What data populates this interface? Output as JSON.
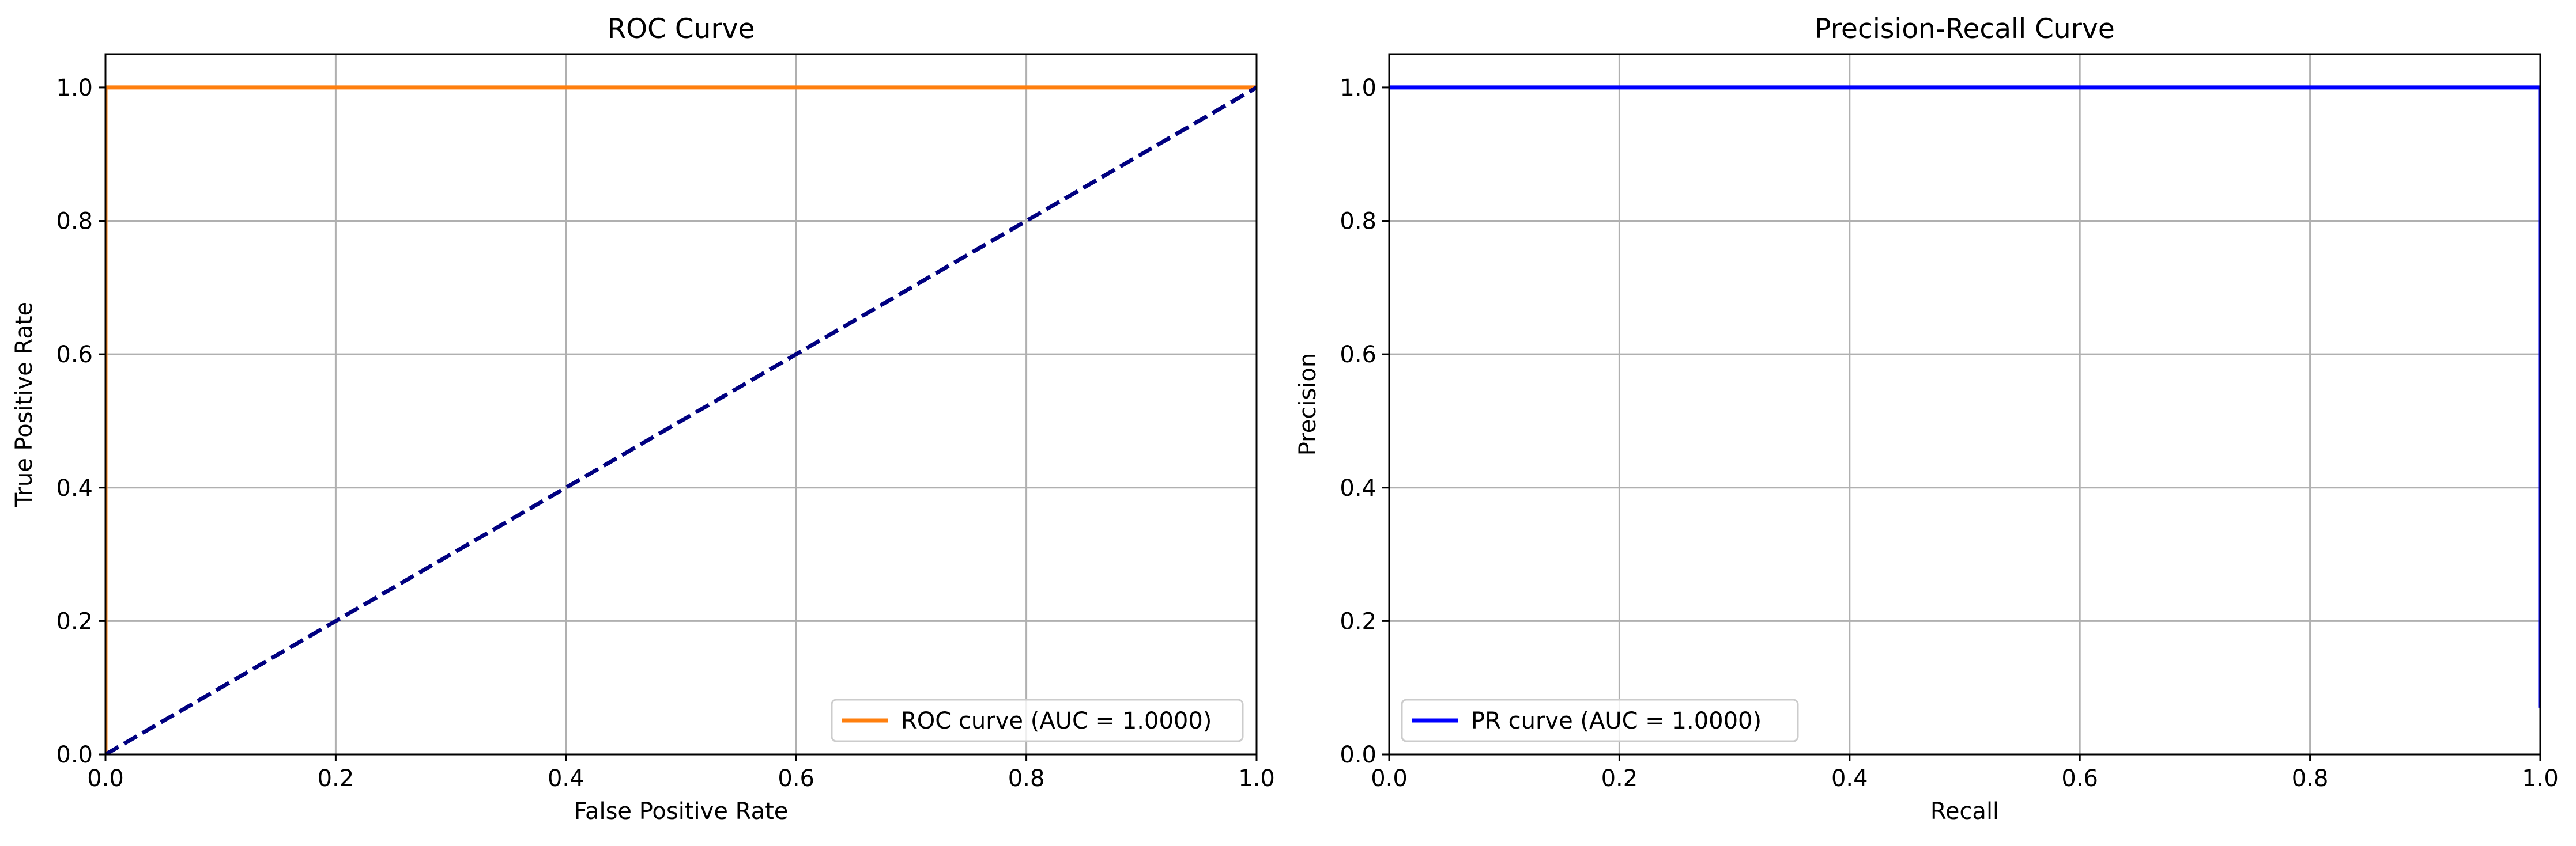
{
  "chart_data": [
    {
      "type": "line",
      "title": "ROC Curve",
      "xlabel": "False Positive Rate",
      "ylabel": "True Positive Rate",
      "xlim": [
        0.0,
        1.0
      ],
      "ylim": [
        0.0,
        1.05
      ],
      "xticks": [
        "0.0",
        "0.2",
        "0.4",
        "0.6",
        "0.8",
        "1.0"
      ],
      "yticks": [
        "0.0",
        "0.2",
        "0.4",
        "0.6",
        "0.8",
        "1.0"
      ],
      "grid": true,
      "legend_placement": "lower-right",
      "series": [
        {
          "name": "ROC curve (AUC = 1.0000)",
          "color": "#ff7f0e",
          "style": "solid",
          "x": [
            0.0,
            0.0,
            1.0
          ],
          "y": [
            0.0,
            1.0,
            1.0
          ]
        },
        {
          "color": "#000080",
          "style": "dashed",
          "x": [
            0.0,
            1.0
          ],
          "y": [
            0.0,
            1.0
          ]
        }
      ]
    },
    {
      "type": "line",
      "title": "Precision-Recall Curve",
      "xlabel": "Recall",
      "ylabel": "Precision",
      "xlim": [
        0.0,
        1.0
      ],
      "ylim": [
        0.0,
        1.05
      ],
      "xticks": [
        "0.0",
        "0.2",
        "0.4",
        "0.6",
        "0.8",
        "1.0"
      ],
      "yticks": [
        "0.0",
        "0.2",
        "0.4",
        "0.6",
        "0.8",
        "1.0"
      ],
      "grid": true,
      "legend_placement": "lower-left",
      "series": [
        {
          "name": "PR curve (AUC = 1.0000)",
          "color": "#0000ff",
          "style": "solid",
          "x": [
            0.0,
            1.0,
            1.0
          ],
          "y": [
            1.0,
            1.0,
            0.07
          ]
        }
      ]
    }
  ]
}
